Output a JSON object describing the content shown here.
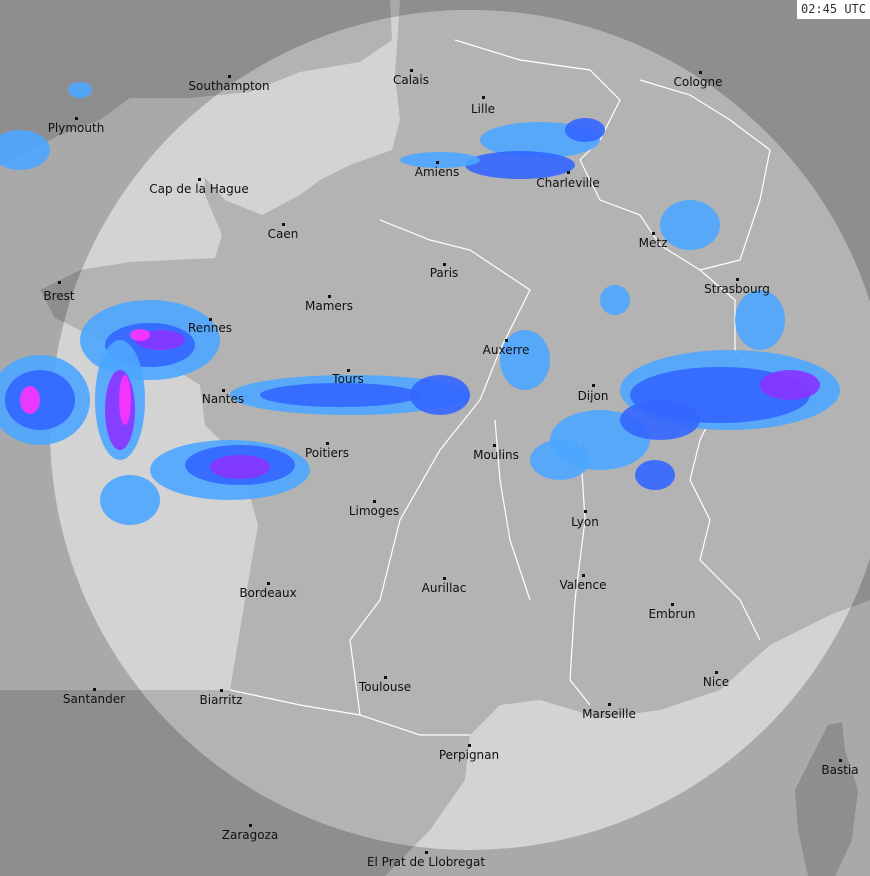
{
  "timestamp": "02:45 UTC",
  "colors": {
    "sea": "#d3d3d3",
    "land": "#b3b3b3",
    "sea_outside_coverage": "#a9a9a9",
    "land_outside_coverage": "#8e8e8e",
    "border": "#ffffff",
    "radar_light": "#4da6ff",
    "radar_blue": "#3366ff",
    "radar_purple": "#8833ff",
    "radar_magenta": "#ff33ff"
  },
  "cities": [
    "Southampton",
    "Calais",
    "Lille",
    "Cologne",
    "Plymouth",
    "Amiens",
    "Charleville",
    "Cap de la Hague",
    "Caen",
    "Metz",
    "Paris",
    "Brest",
    "Strasbourg",
    "Mamers",
    "Rennes",
    "Auxerre",
    "Tours",
    "Dijon",
    "Nantes",
    "Poitiers",
    "Moulins",
    "Limoges",
    "Lyon",
    "Valence",
    "Aurillac",
    "Bordeaux",
    "Embrun",
    "Nice",
    "Toulouse",
    "Santander",
    "Biarritz",
    "Marseille",
    "Perpignan",
    "Bastia",
    "Zaragoza",
    "El Prat de Llobregat"
  ]
}
